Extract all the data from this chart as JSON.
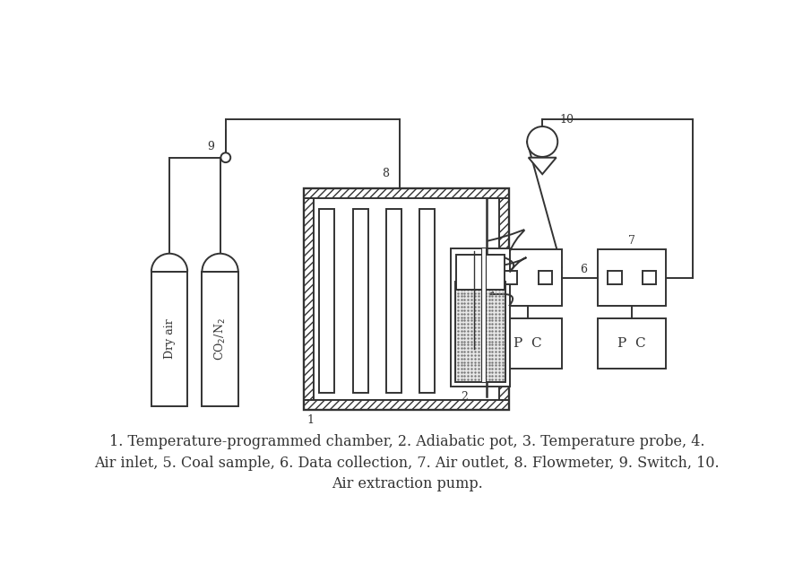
{
  "bg_color": "#ffffff",
  "line_color": "#333333",
  "caption_line1": "1. Temperature-programmed chamber, 2. Adiabatic pot, 3. Temperature probe, 4.",
  "caption_line2": "Air inlet, 5. Coal sample, 6. Data collection, 7. Air outlet, 8. Flowmeter, 9. Switch, 10.",
  "caption_line3": "Air extraction pump."
}
